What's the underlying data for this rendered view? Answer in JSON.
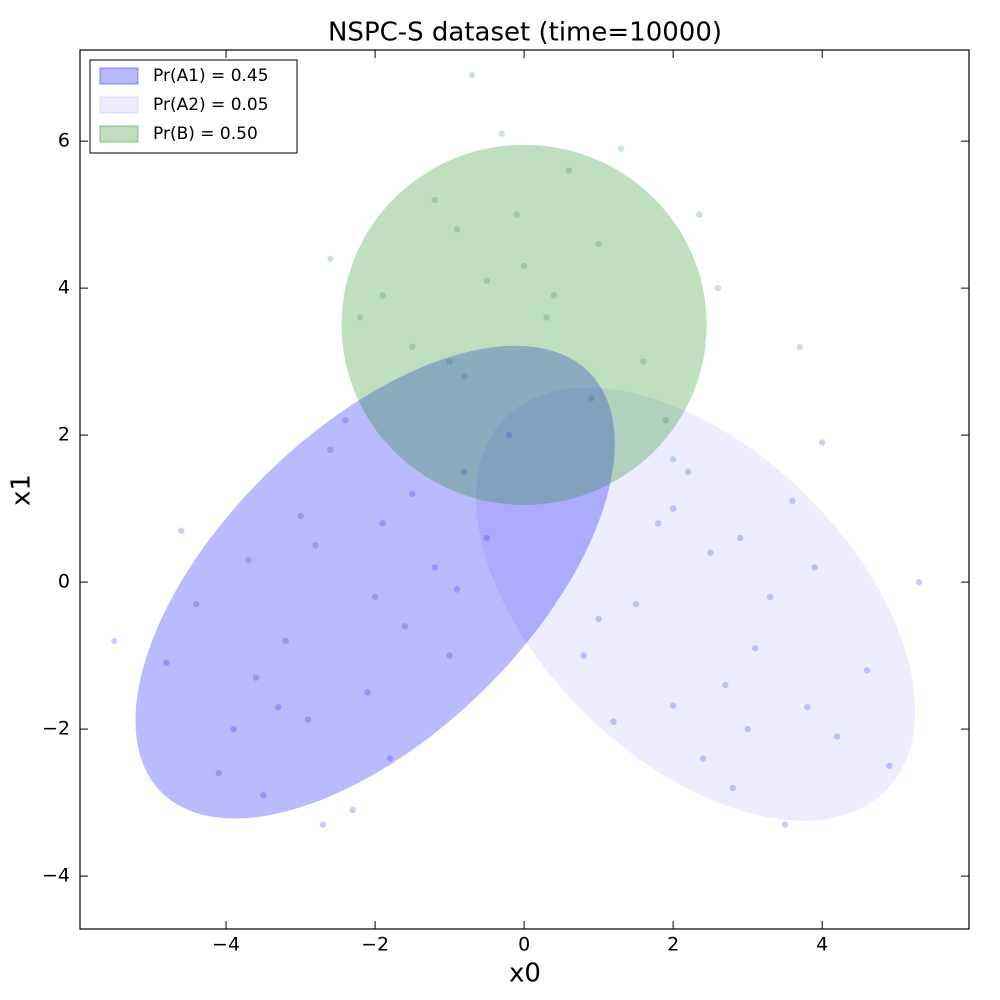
{
  "chart_data": {
    "type": "scatter",
    "title": "NSPC-S dataset (time=10000)",
    "x_label": "x0",
    "y_label": "x1",
    "xlim": [
      -5.96,
      5.97
    ],
    "ylim": [
      -4.72,
      7.24
    ],
    "xticks": [
      {
        "value": -4,
        "label": "−4"
      },
      {
        "value": -2,
        "label": "−2"
      },
      0,
      2,
      4
    ],
    "yticks": [
      {
        "value": -4,
        "label": "−4"
      },
      {
        "value": -2,
        "label": "−2"
      },
      0,
      2,
      4,
      6
    ],
    "legend_position": "upper left",
    "series": [
      {
        "name": "Pr(A1) = 0.45",
        "color": "#0000ff",
        "alpha": 0.27,
        "center": [
          -2.0,
          0.0
        ],
        "width": 8.1,
        "height": 4.14,
        "angle": 45,
        "x": [
          -3.2,
          -2.8,
          -2.1,
          -1.5,
          -3.9,
          -4.4,
          -2.6,
          -1.2,
          -0.8,
          -3.5,
          -2.0,
          -1.8,
          -4.8,
          -3.0,
          -2.3,
          -0.5,
          -1.0,
          -3.7,
          -2.9,
          -4.1,
          -1.6,
          -2.4,
          -3.3,
          -0.2,
          -5.5,
          -2.7,
          -1.9,
          -3.6,
          -4.6,
          -0.9
        ],
        "y": [
          -0.8,
          0.5,
          -1.5,
          1.2,
          -2.0,
          -0.3,
          1.8,
          0.2,
          1.5,
          -2.9,
          -0.2,
          -2.4,
          -1.1,
          0.9,
          -3.1,
          0.6,
          -1.0,
          0.3,
          -1.87,
          -2.6,
          -0.6,
          2.2,
          -1.7,
          2.0,
          -0.8,
          -3.3,
          0.8,
          -1.3,
          0.7,
          -0.1
        ]
      },
      {
        "name": "Pr(A2) = 0.05",
        "color": "#0000ff",
        "alpha": 0.07,
        "center": [
          2.3,
          -0.3
        ],
        "width": 7.2,
        "height": 4.2,
        "angle": -45,
        "x": [
          2.0,
          2.5,
          3.1,
          3.6,
          4.2,
          1.5,
          2.8,
          3.9,
          4.6,
          1.2,
          2.2,
          3.3,
          4.9,
          2.7,
          1.8,
          3.5,
          0.8,
          4.0,
          2.9,
          3.0,
          5.3,
          1.0,
          2.4,
          3.8,
          2.0
        ],
        "y": [
          -1.68,
          0.4,
          -0.9,
          1.1,
          -2.1,
          -0.3,
          -2.8,
          0.2,
          -1.2,
          -1.9,
          1.5,
          -0.2,
          -2.5,
          -1.4,
          0.8,
          -3.3,
          -1.0,
          1.9,
          0.6,
          -2.0,
          0.0,
          -0.5,
          -2.4,
          -1.7,
          1.0
        ]
      },
      {
        "name": "Pr(B) = 0.50",
        "color": "#008000",
        "alpha": 0.25,
        "center": [
          0.0,
          3.5
        ],
        "width": 4.9,
        "height": 4.9,
        "angle": 0,
        "x": [
          2.35,
          2.0,
          -0.5,
          0.3,
          -1.2,
          1.0,
          -0.8,
          0.6,
          -1.9,
          1.6,
          0.0,
          -0.3,
          -2.6,
          2.6,
          -1.5,
          0.9,
          -0.1,
          1.3,
          -2.2,
          0.4,
          -0.9,
          3.7,
          -0.7,
          1.9,
          -1.0
        ],
        "y": [
          5.0,
          1.67,
          4.1,
          3.6,
          5.2,
          4.6,
          2.8,
          5.6,
          3.9,
          3.0,
          4.3,
          6.1,
          4.4,
          4.0,
          3.2,
          2.5,
          5.0,
          5.9,
          3.6,
          3.9,
          4.8,
          3.2,
          6.9,
          2.2,
          3.0
        ]
      }
    ]
  }
}
